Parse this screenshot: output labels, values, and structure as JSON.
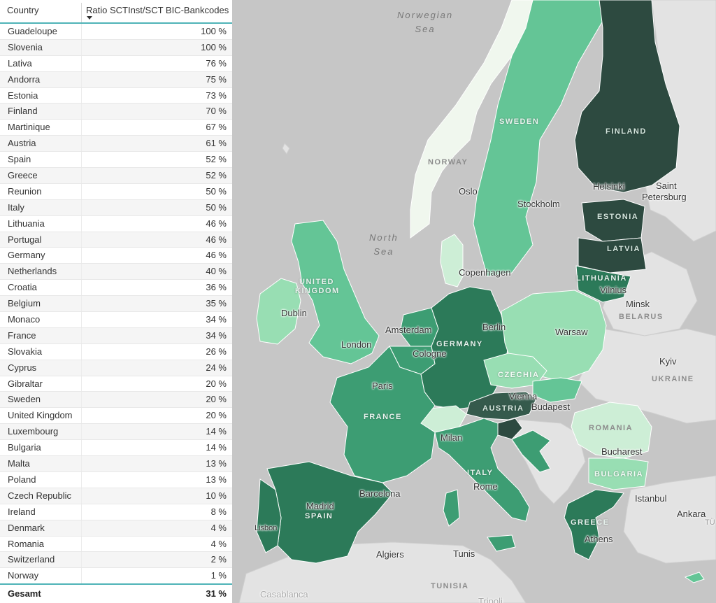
{
  "table": {
    "header": {
      "country": "Country",
      "ratio": "Ratio SCTInst/SCT BIC-Bankcodes"
    },
    "rows": [
      {
        "country": "Guadeloupe",
        "ratio": "100 %"
      },
      {
        "country": "Slovenia",
        "ratio": "100 %"
      },
      {
        "country": "Lativa",
        "ratio": "76 %"
      },
      {
        "country": "Andorra",
        "ratio": "75 %"
      },
      {
        "country": "Estonia",
        "ratio": "73 %"
      },
      {
        "country": "Finland",
        "ratio": "70 %"
      },
      {
        "country": "Martinique",
        "ratio": "67 %"
      },
      {
        "country": "Austria",
        "ratio": "61 %"
      },
      {
        "country": "Spain",
        "ratio": "52 %"
      },
      {
        "country": "Greece",
        "ratio": "52 %"
      },
      {
        "country": "Reunion",
        "ratio": "50 %"
      },
      {
        "country": "Italy",
        "ratio": "50 %"
      },
      {
        "country": "Lithuania",
        "ratio": "46 %"
      },
      {
        "country": "Portugal",
        "ratio": "46 %"
      },
      {
        "country": "Germany",
        "ratio": "46 %"
      },
      {
        "country": "Netherlands",
        "ratio": "40 %"
      },
      {
        "country": "Croatia",
        "ratio": "36 %"
      },
      {
        "country": "Belgium",
        "ratio": "35 %"
      },
      {
        "country": "Monaco",
        "ratio": "34 %"
      },
      {
        "country": "France",
        "ratio": "34 %"
      },
      {
        "country": "Slovakia",
        "ratio": "26 %"
      },
      {
        "country": "Cyprus",
        "ratio": "24 %"
      },
      {
        "country": "Gibraltar",
        "ratio": "20 %"
      },
      {
        "country": "Sweden",
        "ratio": "20 %"
      },
      {
        "country": "United Kingdom",
        "ratio": "20 %"
      },
      {
        "country": "Luxembourg",
        "ratio": "14 %"
      },
      {
        "country": "Bulgaria",
        "ratio": "14 %"
      },
      {
        "country": "Malta",
        "ratio": "13 %"
      },
      {
        "country": "Poland",
        "ratio": "13 %"
      },
      {
        "country": "Czech Republic",
        "ratio": "10 %"
      },
      {
        "country": "Ireland",
        "ratio": "8 %"
      },
      {
        "country": "Denmark",
        "ratio": "4 %"
      },
      {
        "country": "Romania",
        "ratio": "4 %"
      },
      {
        "country": "Switzerland",
        "ratio": "2 %"
      },
      {
        "country": "Norway",
        "ratio": "1 %"
      }
    ],
    "total": {
      "label": "Gesamt",
      "ratio": "31 %"
    }
  },
  "map": {
    "sea_labels": {
      "norwegian_sea": "Norwegian\nSea",
      "north_sea": "North\nSea"
    },
    "country_labels": {
      "sweden": "SWEDEN",
      "norway": "NORWAY",
      "finland": "FINLAND",
      "estonia": "ESTONIA",
      "latvia": "LATVIA",
      "lithuania": "LITHUANIA",
      "united_kingdom_1": "UNITED",
      "united_kingdom_2": "KINGDOM",
      "germany": "GERMANY",
      "france": "FRANCE",
      "czechia": "CZECHIA",
      "austria": "AUSTRIA",
      "italy": "ITALY",
      "spain": "SPAIN",
      "romania": "ROMANIA",
      "bulgaria": "BULGARIA",
      "greece": "GREECE",
      "belarus": "BELARUS",
      "ukraine": "UKRAINE",
      "tunisia": "TUNISIA"
    },
    "city_labels": {
      "oslo": "Oslo",
      "stockholm": "Stockholm",
      "helsinki": "Helsinki",
      "saint_petersburg_1": "Saint",
      "saint_petersburg_2": "Petersburg",
      "copenhagen": "Copenhagen",
      "vilnius": "Vilnius",
      "minsk": "Minsk",
      "dublin": "Dublin",
      "london": "London",
      "amsterdam": "Amsterdam",
      "berlin": "Berlin",
      "cologne": "Cologne",
      "warsaw": "Warsaw",
      "paris": "Paris",
      "kyiv": "Kyiv",
      "vienna": "Vienna",
      "budapest": "Budapest",
      "milan": "Milan",
      "bucharest": "Bucharest",
      "madrid": "Madrid",
      "rome": "Rome",
      "barcelona": "Barcelona",
      "istanbul": "Istanbul",
      "ankara": "Ankara",
      "lisbon": "Lisbon",
      "athens": "Athens",
      "algiers": "Algiers",
      "tunis": "Tunis",
      "casablanca": "Casablanca",
      "tripoli": "Tripoli",
      "tu": "TÜ"
    },
    "colors": {
      "background": "#c6c6c6",
      "land_other": "#e3e3e3",
      "shade_1": "#f0f7ee",
      "shade_2": "#cdeed6",
      "shade_3": "#98deb3",
      "shade_4": "#64c596",
      "shade_5": "#3d9d73",
      "shade_6": "#2c7a59",
      "shade_7": "#355a4c",
      "shade_8": "#2d4a40"
    }
  }
}
